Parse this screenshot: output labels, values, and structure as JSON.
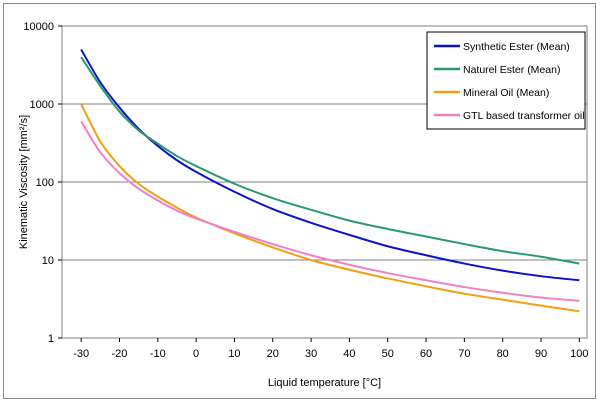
{
  "chart_data": {
    "type": "line",
    "title": "",
    "xlabel": "Liquid temperature [°C]",
    "ylabel": "Kinematic Viscosity [mm²/s]",
    "xlim": [
      -35,
      102
    ],
    "ylim": [
      1,
      10000
    ],
    "yscale": "log",
    "grid": "horizontal",
    "legend_position": "top-right",
    "x_ticks": [
      -30,
      -20,
      -10,
      0,
      10,
      20,
      30,
      40,
      50,
      60,
      70,
      80,
      90,
      100
    ],
    "y_ticks": [
      1,
      10,
      100,
      1000,
      10000
    ],
    "x_tick_labels": [
      "-30",
      "-20",
      "-10",
      "0",
      "10",
      "20",
      "30",
      "40",
      "50",
      "60",
      "70",
      "80",
      "90",
      "100"
    ],
    "y_tick_labels": [
      "1",
      "10",
      "100",
      "1000",
      "10000"
    ],
    "x": [
      -30,
      -25,
      -20,
      -15,
      -10,
      -5,
      0,
      10,
      20,
      30,
      40,
      50,
      60,
      70,
      80,
      90,
      100
    ],
    "series": [
      {
        "name": "Synthetic Ester (Mean)",
        "color": "#0a14c8",
        "values": [
          5000,
          1900,
          900,
          480,
          290,
          190,
          135,
          75,
          45,
          30,
          21,
          15,
          11.5,
          9,
          7.3,
          6.2,
          5.5
        ]
      },
      {
        "name": "Naturel Ester (Mean)",
        "color": "#2a9a6a",
        "values": [
          4000,
          1700,
          800,
          460,
          310,
          215,
          160,
          95,
          62,
          44,
          32,
          25,
          20,
          16,
          13,
          11,
          9
        ]
      },
      {
        "name": "Mineral Oil (Mean)",
        "color": "#f0a010",
        "values": [
          1000,
          330,
          160,
          95,
          65,
          47,
          35,
          22,
          14.5,
          10,
          7.5,
          5.8,
          4.6,
          3.7,
          3.1,
          2.6,
          2.2
        ]
      },
      {
        "name": "GTL based transformer oil",
        "color": "#f080c8",
        "values": [
          600,
          240,
          130,
          82,
          58,
          43,
          34,
          23,
          16,
          11.5,
          8.7,
          6.8,
          5.5,
          4.5,
          3.8,
          3.3,
          3.0
        ]
      }
    ]
  }
}
